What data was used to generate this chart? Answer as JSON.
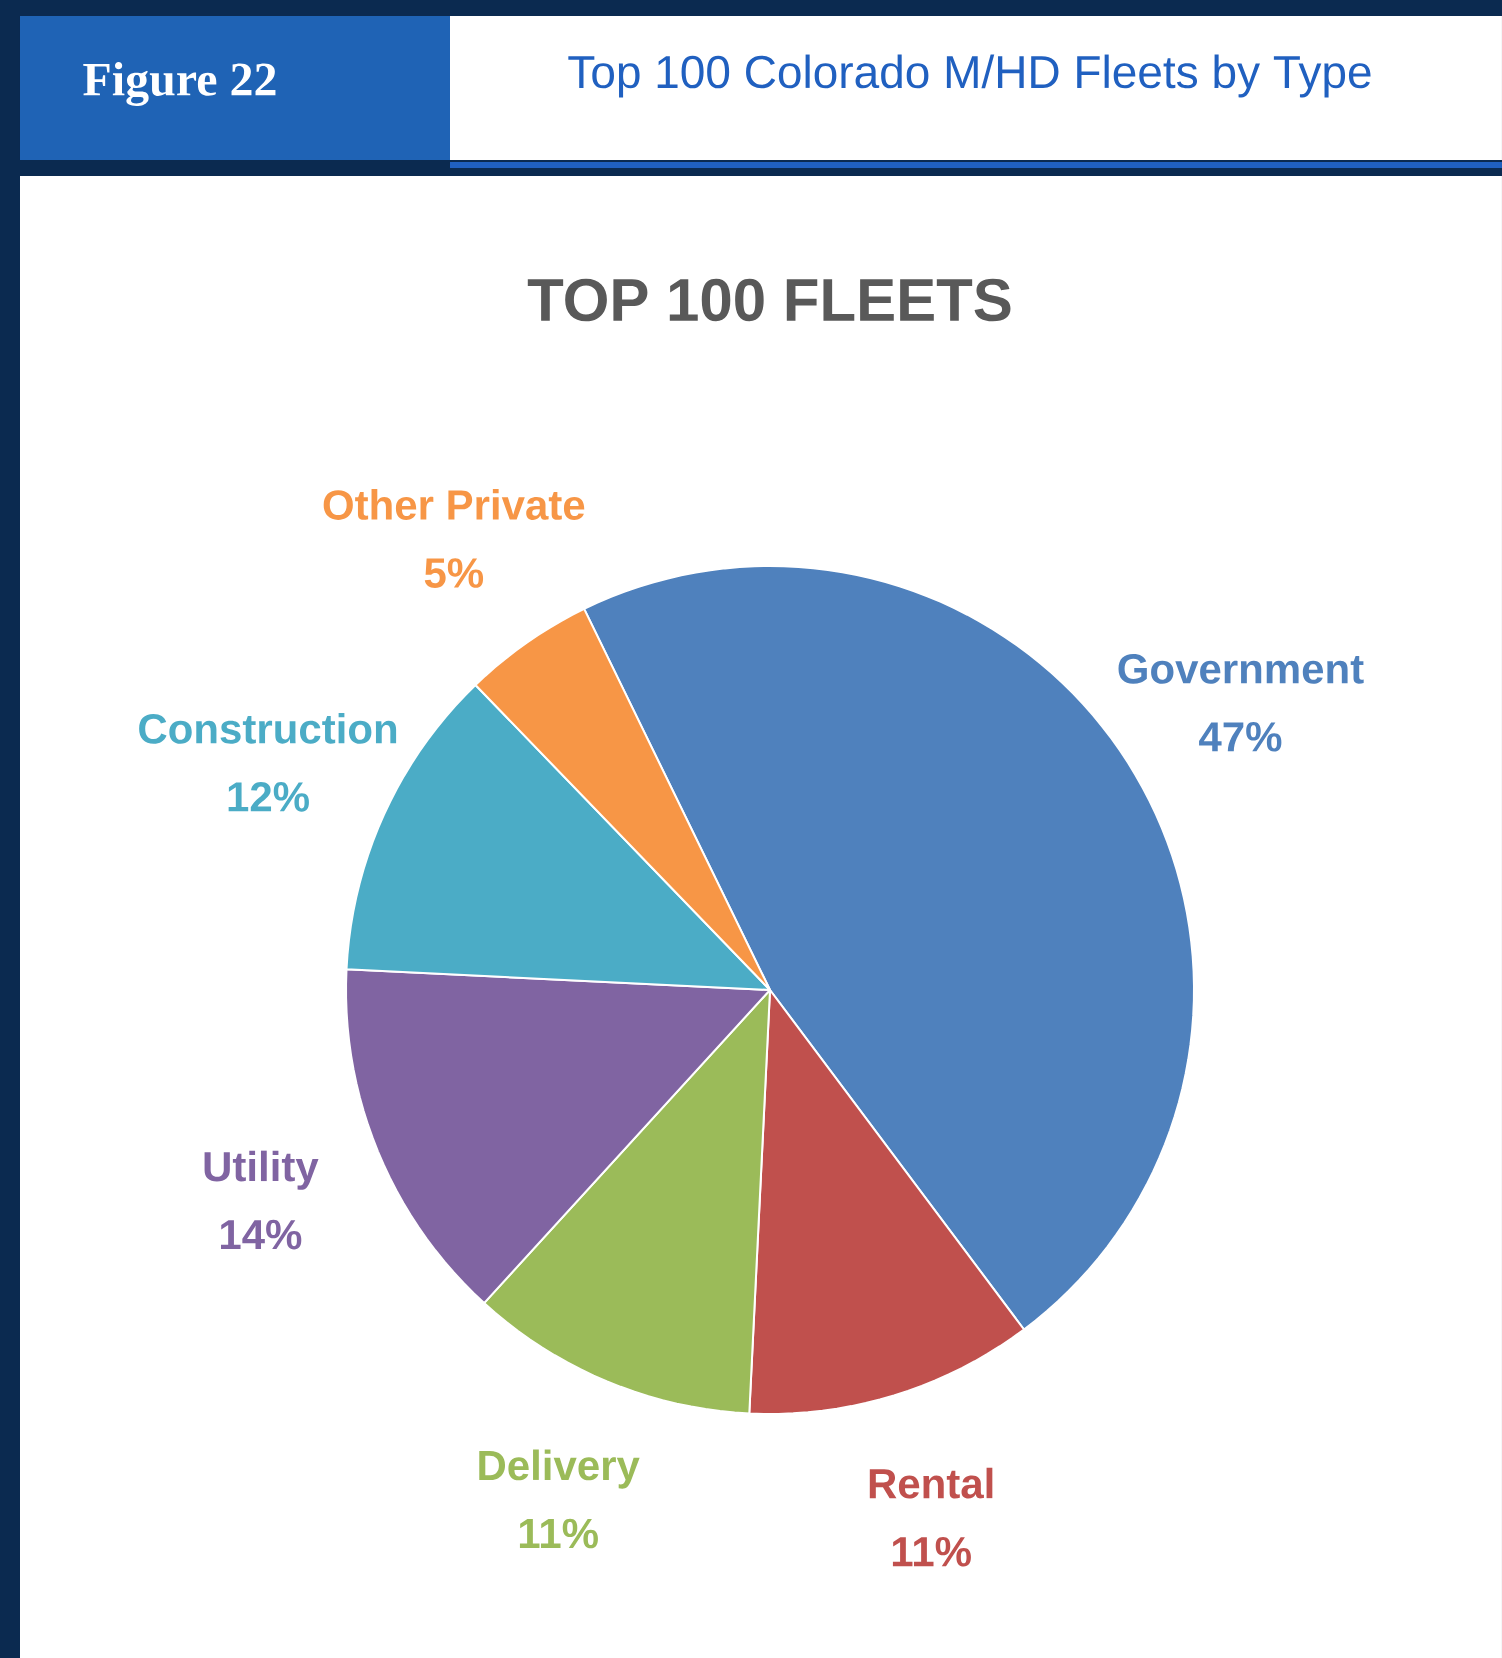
{
  "chart_data": {
    "type": "pie",
    "title": "Top 100 Colorado M/HD Fleets by Type",
    "subtitle": "TOP 100 FLEETS",
    "annotations": [
      "Figure 22"
    ],
    "categories": [
      "Government",
      "Rental",
      "Delivery",
      "Utility",
      "Construction",
      "Other Private"
    ],
    "values": [
      47,
      11,
      11,
      14,
      12,
      5
    ],
    "value_labels": [
      "47%",
      "11%",
      "11%",
      "14%",
      "12%",
      "5%"
    ],
    "colors": [
      "#4f81bd",
      "#c0504d",
      "#9bbb59",
      "#8064a2",
      "#4bacc6",
      "#f79646"
    ]
  }
}
